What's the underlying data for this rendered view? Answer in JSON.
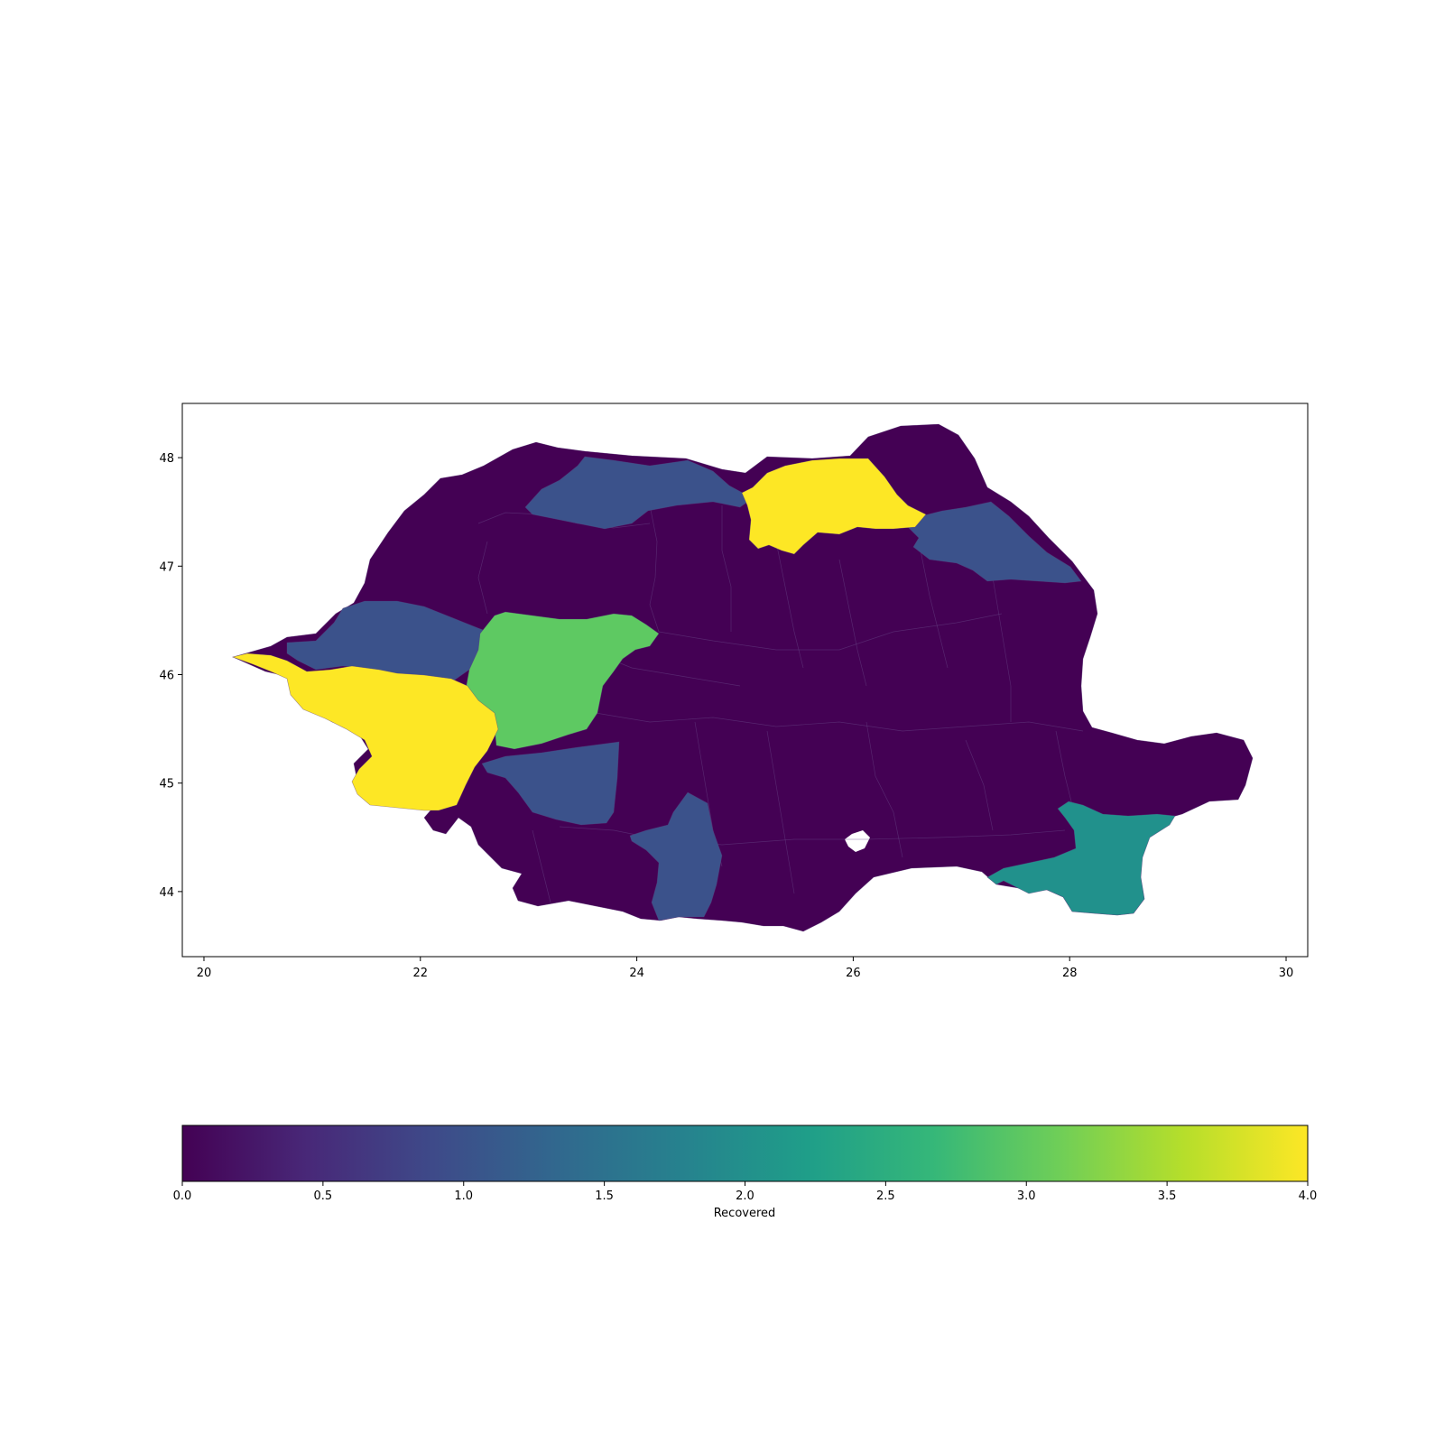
{
  "map": {
    "x_ticks": [
      "20",
      "22",
      "24",
      "26",
      "28",
      "30"
    ],
    "y_ticks": [
      "44",
      "45",
      "46",
      "47",
      "48"
    ],
    "xlim": [
      19.8,
      30.2
    ],
    "ylim": [
      43.4,
      48.5
    ]
  },
  "colorbar": {
    "label": "Recovered",
    "ticks": [
      "0.0",
      "0.5",
      "1.0",
      "1.5",
      "2.0",
      "2.5",
      "3.0",
      "3.5",
      "4.0"
    ],
    "range": [
      0,
      4
    ],
    "colormap": "viridis",
    "stops": [
      "#440154",
      "#482878",
      "#3e4a89",
      "#31688e",
      "#26828e",
      "#1f9e89",
      "#35b779",
      "#6ece58",
      "#b5de2b",
      "#fde725"
    ]
  },
  "colors": {
    "value_0": "#440154",
    "value_1": "#3b528b",
    "value_2": "#21918c",
    "value_3": "#5ec962",
    "value_4": "#fde725"
  },
  "chart_data": {
    "type": "choropleth",
    "variable": "Recovered",
    "xlim": [
      19.8,
      30.2
    ],
    "ylim": [
      43.4,
      48.5
    ],
    "value_range": [
      0,
      4
    ],
    "grid": false,
    "regions_by_value": [
      {
        "value": 4,
        "areas": [
          "north (Suceava area)",
          "west (Timis / Arad area)"
        ]
      },
      {
        "value": 3,
        "areas": [
          "west-central (Alba / Hunedoara area)"
        ]
      },
      {
        "value": 2,
        "areas": [
          "southeast coast (Constanta area)"
        ]
      },
      {
        "value": 1,
        "areas": [
          "north (Maramures area)",
          "northeast (Botosani/Iasi area)",
          "west (Bihor / Arad area)",
          "southwest (Gorj area)",
          "south (Olt area)"
        ]
      },
      {
        "value": 0,
        "areas": [
          "all remaining counties"
        ]
      }
    ]
  }
}
